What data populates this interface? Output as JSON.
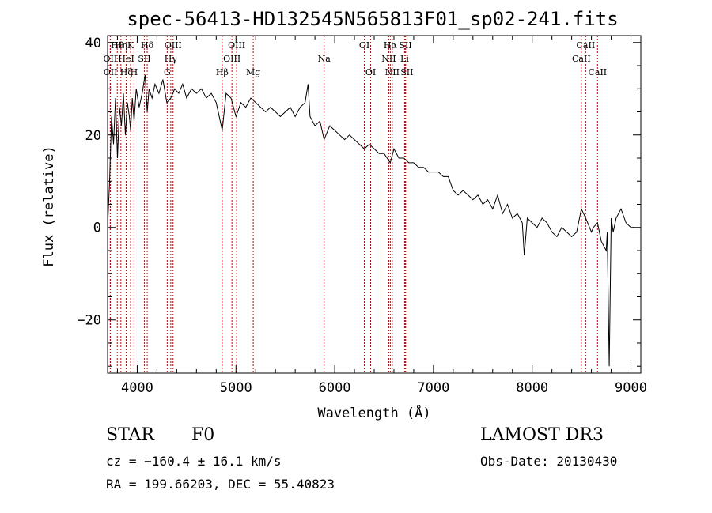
{
  "chart_data": {
    "type": "line",
    "title": "spec-56413-HD132545N565813F01_sp02-241.fits",
    "xlabel": "Wavelength (Å)",
    "ylabel": "Flux (relative)",
    "xlim": [
      3700,
      9100
    ],
    "ylim": [
      -31.5,
      41.5
    ],
    "xticks": [
      4000,
      5000,
      6000,
      7000,
      8000,
      9000
    ],
    "yticks": [
      -20,
      0,
      20,
      40
    ],
    "ytick_labels": [
      "−20",
      "0",
      "20",
      "40"
    ],
    "series": [
      {
        "name": "flux",
        "x": [
          3700,
          3720,
          3740,
          3760,
          3780,
          3800,
          3820,
          3840,
          3860,
          3880,
          3900,
          3920,
          3933,
          3950,
          3968,
          3990,
          4020,
          4050,
          4080,
          4101,
          4120,
          4150,
          4180,
          4220,
          4260,
          4300,
          4340,
          4380,
          4420,
          4460,
          4500,
          4550,
          4600,
          4650,
          4700,
          4750,
          4800,
          4861,
          4900,
          4950,
          5000,
          5050,
          5100,
          5150,
          5200,
          5250,
          5300,
          5350,
          5400,
          5450,
          5500,
          5550,
          5600,
          5650,
          5700,
          5730,
          5750,
          5800,
          5850,
          5893,
          5950,
          6000,
          6050,
          6100,
          6150,
          6200,
          6250,
          6300,
          6350,
          6400,
          6450,
          6500,
          6563,
          6600,
          6650,
          6700,
          6750,
          6800,
          6850,
          6900,
          6950,
          7000,
          7050,
          7100,
          7150,
          7200,
          7250,
          7300,
          7350,
          7400,
          7450,
          7500,
          7550,
          7600,
          7650,
          7700,
          7750,
          7800,
          7850,
          7900,
          7920,
          7950,
          8000,
          8050,
          8100,
          8150,
          8200,
          8250,
          8300,
          8350,
          8400,
          8450,
          8498,
          8542,
          8600,
          8620,
          8662,
          8700,
          8750,
          8760,
          8780,
          8800,
          8820,
          8850,
          8900,
          8950,
          9000,
          9030
        ],
        "y": [
          0,
          10,
          24,
          18,
          28,
          15,
          26,
          22,
          29,
          20,
          27,
          24,
          21,
          28,
          23,
          30,
          26,
          29,
          33,
          25,
          30,
          28,
          31,
          29,
          32,
          27,
          28,
          30,
          29,
          31,
          28,
          30,
          29,
          30,
          28,
          29,
          27,
          21,
          29,
          28,
          24,
          27,
          26,
          28,
          27,
          26,
          25,
          26,
          25,
          24,
          25,
          26,
          24,
          26,
          27,
          31,
          24,
          22,
          23,
          19,
          22,
          21,
          20,
          19,
          20,
          19,
          18,
          17,
          18,
          17,
          16,
          16,
          14,
          17,
          15,
          15,
          14,
          14,
          13,
          13,
          12,
          12,
          12,
          11,
          11,
          8,
          7,
          8,
          7,
          6,
          7,
          5,
          6,
          4,
          7,
          3,
          5,
          2,
          3,
          1,
          -6,
          2,
          1,
          0,
          2,
          1,
          -1,
          -2,
          0,
          -1,
          -2,
          -1,
          4,
          2,
          -1,
          0,
          1,
          -3,
          -5,
          -1,
          -30,
          2,
          -1,
          2,
          4,
          1,
          0,
          0
        ]
      }
    ],
    "spectral_lines": [
      {
        "name": "Hθ",
        "x": 3798,
        "row": 1
      },
      {
        "name": "OII",
        "x": 3727,
        "row": 2
      },
      {
        "name": "OII",
        "x": 3729,
        "row": 3
      },
      {
        "name": "Hη",
        "x": 3835,
        "row": 1
      },
      {
        "name": "Hζ",
        "x": 3889,
        "row": 3
      },
      {
        "name": "HeI",
        "x": 3889,
        "row": 2
      },
      {
        "name": "K",
        "x": 3933,
        "row": 1
      },
      {
        "name": "H",
        "x": 3968,
        "row": 3
      },
      {
        "name": "SII",
        "x": 4072,
        "row": 2
      },
      {
        "name": "Hδ",
        "x": 4101,
        "row": 1
      },
      {
        "name": "G",
        "x": 4304,
        "row": 3
      },
      {
        "name": "Hγ",
        "x": 4340,
        "row": 2
      },
      {
        "name": "OIII",
        "x": 4363,
        "row": 1
      },
      {
        "name": "Hβ",
        "x": 4861,
        "row": 3
      },
      {
        "name": "OIII",
        "x": 4959,
        "row": 2
      },
      {
        "name": "OIII",
        "x": 5007,
        "row": 1
      },
      {
        "name": "Mg",
        "x": 5175,
        "row": 3
      },
      {
        "name": "Na",
        "x": 5893,
        "row": 2
      },
      {
        "name": "OI",
        "x": 6300,
        "row": 1
      },
      {
        "name": "OI",
        "x": 6364,
        "row": 3
      },
      {
        "name": "Hα",
        "x": 6563,
        "row": 1
      },
      {
        "name": "NII",
        "x": 6548,
        "row": 2
      },
      {
        "name": "NII",
        "x": 6583,
        "row": 3
      },
      {
        "name": "SII",
        "x": 6717,
        "row": 1
      },
      {
        "name": "Li",
        "x": 6708,
        "row": 2
      },
      {
        "name": "SII",
        "x": 6731,
        "row": 3
      },
      {
        "name": "CaII",
        "x": 8542,
        "row": 1
      },
      {
        "name": "CaII",
        "x": 8498,
        "row": 2
      },
      {
        "name": "CaII",
        "x": 8662,
        "row": 3
      }
    ]
  },
  "info": {
    "object_class": "STAR",
    "subclass": "F0",
    "cz": "cz = −160.4 ± 16.1 km/s",
    "coords": "RA = 199.66203, DEC =  55.40823",
    "survey": "LAMOST DR3",
    "obs_date": "Obs-Date: 20130430"
  }
}
